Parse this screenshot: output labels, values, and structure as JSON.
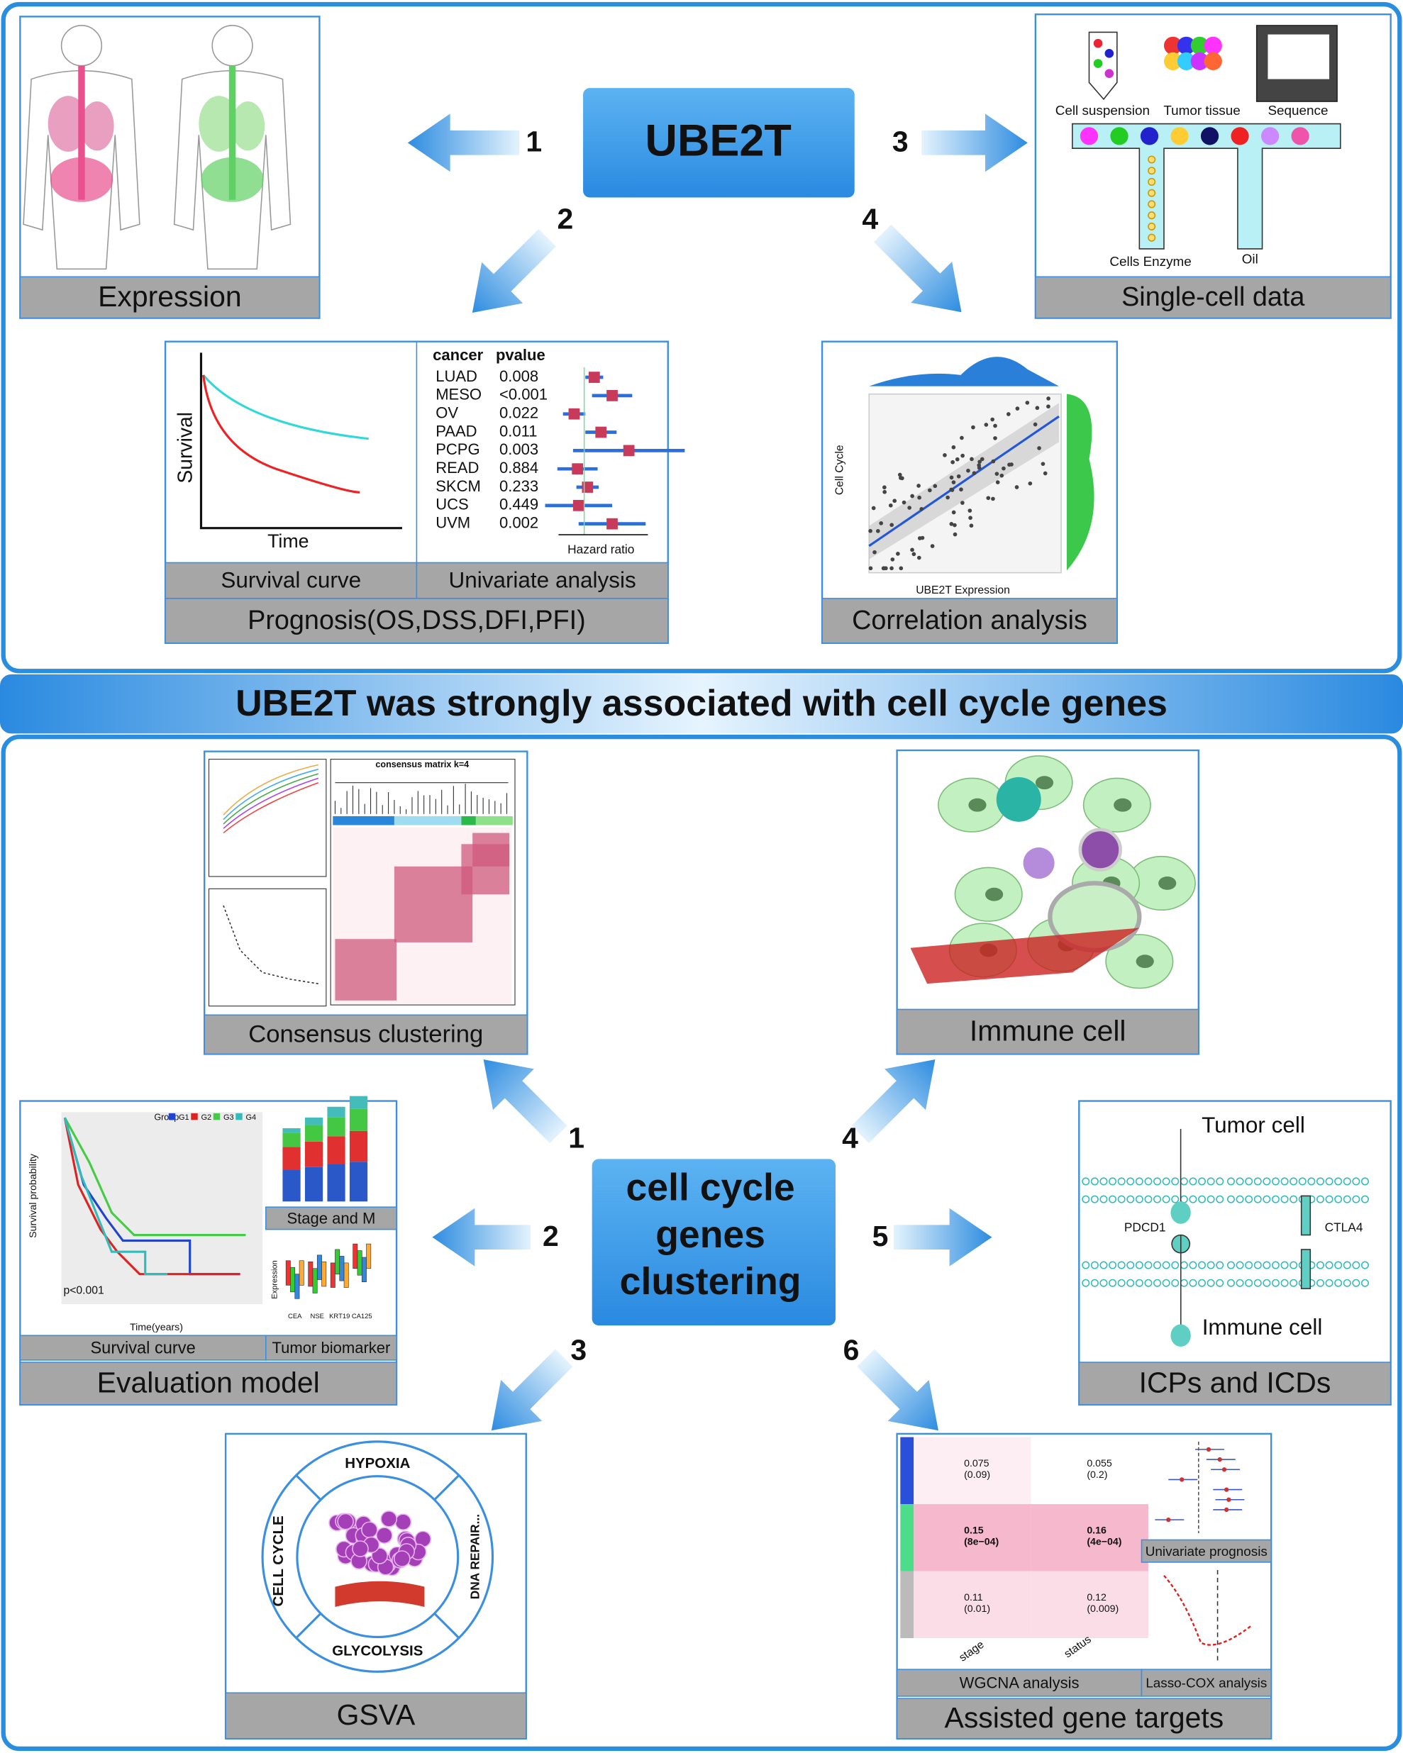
{
  "top": {
    "center": "UBE2T",
    "steps": [
      "1",
      "2",
      "3",
      "4"
    ],
    "expression": {
      "caption": "Expression"
    },
    "single_cell": {
      "labels": [
        "Cell suspension",
        "Tumor tissue",
        "Sequence",
        "Cells Enzyme",
        "Oil"
      ],
      "caption": "Single-cell data"
    },
    "prognosis": {
      "survival_y": "Survival",
      "survival_x": "Time",
      "survival_caption": "Survival curve",
      "forest_header": [
        "cancer",
        "pvalue"
      ],
      "forest_rows": [
        [
          "LUAD",
          "0.008"
        ],
        [
          "MESO",
          "<0.001"
        ],
        [
          "OV",
          "0.022"
        ],
        [
          "PAAD",
          "0.011"
        ],
        [
          "PCPG",
          "0.003"
        ],
        [
          "READ",
          "0.884"
        ],
        [
          "SKCM",
          "0.233"
        ],
        [
          "UCS",
          "0.449"
        ],
        [
          "UVM",
          "0.002"
        ]
      ],
      "forest_x": "Hazard ratio",
      "forest_caption": "Univariate analysis",
      "caption": "Prognosis(OS,DSS,DFI,PFI)"
    },
    "correlation": {
      "y_label": "Cell Cycle",
      "x_label": "UBE2T Expression",
      "caption": "Correlation analysis"
    }
  },
  "banner": "UBE2T was strongly associated with cell cycle genes",
  "bottom": {
    "center": [
      "cell cycle",
      "genes",
      "clustering"
    ],
    "steps": [
      "1",
      "2",
      "3",
      "4",
      "5",
      "6"
    ],
    "consensus": {
      "title": "consensus matrix k=4",
      "caption": "Consensus clustering"
    },
    "immune": {
      "caption": "Immune cell"
    },
    "evaluation": {
      "legend_title": "Group",
      "groups": [
        "G1",
        "G2",
        "G3",
        "G4"
      ],
      "y_label": "Survival probability",
      "x_label": "Time(years)",
      "pvalue": "p<0.001",
      "survival_caption": "Survival curve",
      "stage_caption": "Stage and M",
      "biomarker_y": "Expression",
      "biomarkers": [
        "CEA",
        "NSE",
        "KRT19",
        "CA125"
      ],
      "biomarker_caption": "Tumor biomarker",
      "caption": "Evaluation model"
    },
    "icp": {
      "labels": [
        "Tumor cell",
        "PDCD1",
        "CTLA4",
        "Immune cell"
      ],
      "caption": "ICPs and ICDs"
    },
    "gsva": {
      "labels": [
        "HYPOXIA",
        "CELL CYCLE",
        "DNA REPAIR...",
        "GLYCOLYSIS"
      ],
      "caption": "GSVA"
    },
    "assisted": {
      "wgcna_cells": [
        [
          [
            "0.075",
            "(0.09)"
          ],
          [
            "0.055",
            "(0.2)"
          ]
        ],
        [
          [
            "0.15",
            "(8e−04)"
          ],
          [
            "0.16",
            "(4e−04)"
          ]
        ],
        [
          [
            "0.11",
            "(0.01)"
          ],
          [
            "0.12",
            "(0.009)"
          ]
        ]
      ],
      "wgcna_x": [
        "stage",
        "status"
      ],
      "wgcna_caption": "WGCNA analysis",
      "univariate_caption": "Univariate prognosis",
      "lasso_caption": "Lasso-COX analysis",
      "caption": "Assisted gene targets"
    }
  }
}
